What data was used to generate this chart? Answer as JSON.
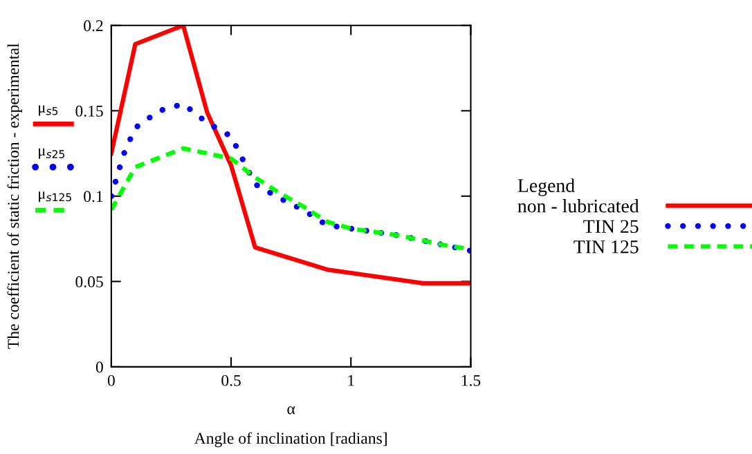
{
  "chart_data": {
    "type": "line",
    "ylabel": "The coefficient of static friction - experimental",
    "xlabel": "α",
    "legend_title": "Legend",
    "legend": "right",
    "grid": false,
    "xlim": [
      0,
      1.5
    ],
    "xticks": [
      0,
      0.5,
      1,
      1.5
    ],
    "ylim": [
      0,
      0.2
    ],
    "yticks": [
      0,
      0.05,
      0.1,
      0.15,
      0.2
    ],
    "series": [
      {
        "name": "non - lubricated",
        "color": "#ff0000",
        "line_style": "solid",
        "x": [
          0,
          0.1,
          0.3,
          0.4,
          0.5,
          0.6,
          0.9,
          1.3,
          1.5
        ],
        "values": [
          0.125,
          0.189,
          0.2,
          0.149,
          0.118,
          0.07,
          0.057,
          0.049,
          0.049
        ]
      },
      {
        "name": "TIN 25",
        "color": "#0000ff",
        "line_style": "dotted",
        "x": [
          0,
          0.05,
          0.1,
          0.2,
          0.3,
          0.4,
          0.5,
          0.6,
          0.7,
          0.8,
          0.9,
          1.0,
          1.1,
          1.2,
          1.3,
          1.4,
          1.5
        ],
        "values": [
          0.1,
          0.124,
          0.14,
          0.15,
          0.154,
          0.143,
          0.135,
          0.107,
          0.099,
          0.092,
          0.083,
          0.081,
          0.079,
          0.077,
          0.074,
          0.071,
          0.068
        ]
      },
      {
        "name": "TIN 125",
        "color": "#00ff00",
        "line_style": "dashed",
        "x": [
          0,
          0.1,
          0.3,
          0.4,
          0.5,
          0.6,
          0.7,
          0.8,
          0.9,
          1.0,
          1.1,
          1.2,
          1.3,
          1.4,
          1.5
        ],
        "values": [
          0.092,
          0.117,
          0.128,
          0.125,
          0.122,
          0.111,
          0.102,
          0.094,
          0.085,
          0.081,
          0.079,
          0.077,
          0.074,
          0.071,
          0.069
        ]
      }
    ],
    "annotations": [
      "μ$_{s5}$",
      "μ$_{s25}$",
      "μ$_{s125}$",
      "Angle of inclination [radians]"
    ]
  }
}
